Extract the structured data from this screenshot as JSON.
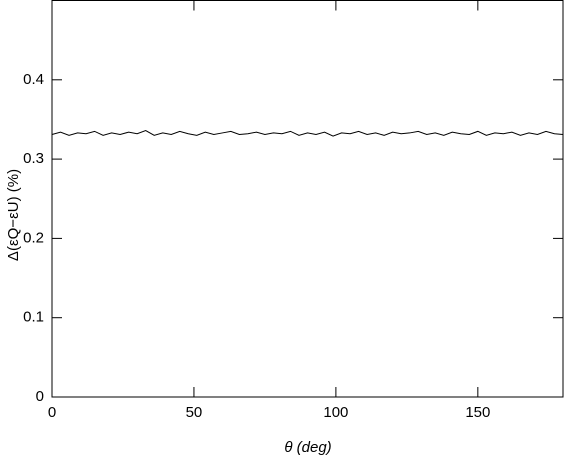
{
  "chart_data": {
    "type": "line",
    "x_label": "θ (deg)",
    "y_label": "Δ(εQ−εU) (%)",
    "x": [
      0,
      3,
      6,
      9,
      12,
      15,
      18,
      21,
      24,
      27,
      30,
      33,
      36,
      39,
      42,
      45,
      48,
      51,
      54,
      57,
      60,
      63,
      66,
      69,
      72,
      75,
      78,
      81,
      84,
      87,
      90,
      93,
      96,
      99,
      102,
      105,
      108,
      111,
      114,
      117,
      120,
      123,
      126,
      129,
      132,
      135,
      138,
      141,
      144,
      147,
      150,
      153,
      156,
      159,
      162,
      165,
      168,
      171,
      174,
      177,
      180
    ],
    "series": [
      {
        "name": "Δ",
        "color": "#000000",
        "values": [
          0.331,
          0.334,
          0.33,
          0.333,
          0.332,
          0.335,
          0.33,
          0.333,
          0.331,
          0.334,
          0.332,
          0.336,
          0.33,
          0.333,
          0.331,
          0.335,
          0.332,
          0.33,
          0.334,
          0.331,
          0.333,
          0.335,
          0.331,
          0.332,
          0.334,
          0.331,
          0.333,
          0.332,
          0.335,
          0.33,
          0.333,
          0.331,
          0.334,
          0.329,
          0.333,
          0.332,
          0.335,
          0.331,
          0.333,
          0.33,
          0.334,
          0.332,
          0.333,
          0.335,
          0.331,
          0.333,
          0.33,
          0.334,
          0.332,
          0.331,
          0.335,
          0.33,
          0.333,
          0.332,
          0.334,
          0.33,
          0.333,
          0.331,
          0.335,
          0.332,
          0.331
        ]
      }
    ],
    "xlim": [
      0,
      180
    ],
    "ylim": [
      0,
      0.5
    ],
    "xticks": [
      0,
      50,
      100,
      150
    ],
    "yticks": [
      0,
      0.1,
      0.2,
      0.3,
      0.4
    ]
  }
}
